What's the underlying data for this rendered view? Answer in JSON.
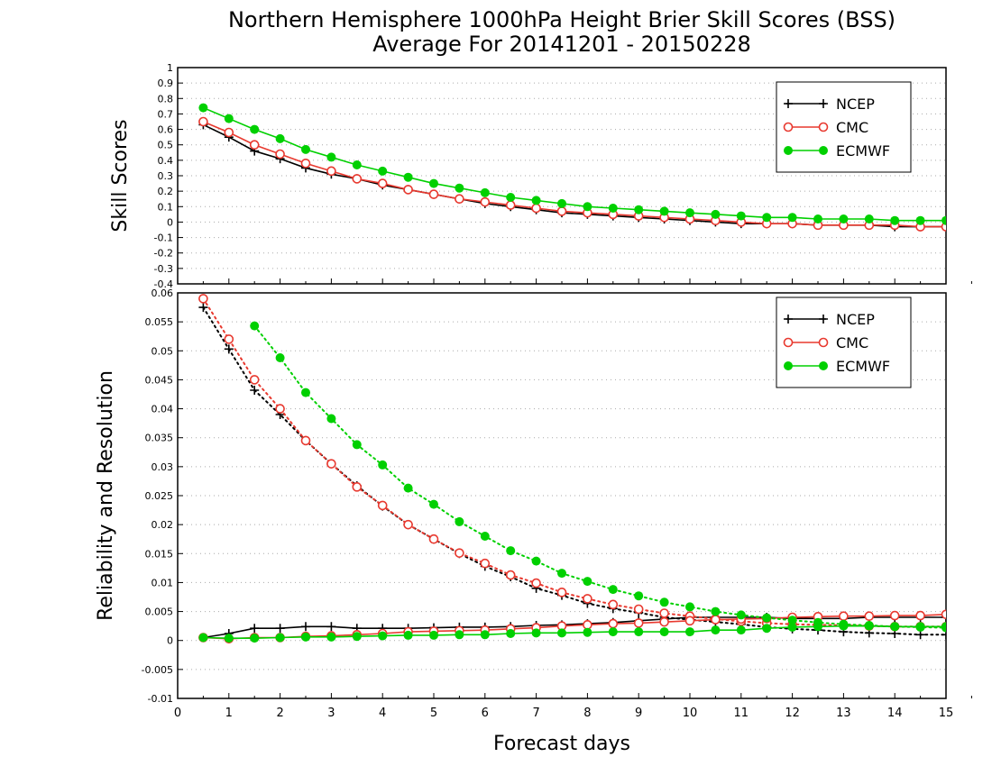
{
  "chart_data": [
    {
      "type": "line",
      "title": "Northern Hemisphere 1000hPa Height Brier Skill Scores (BSS)",
      "subtitle": "Average For 20141201 - 20150228",
      "ylabel": "Skill Scores",
      "xlabel": "",
      "xlim": [
        0,
        15
      ],
      "ylim": [
        -0.4,
        1
      ],
      "y_ticks": [
        "1",
        "0.9",
        "0.8",
        "0.7",
        "0.6",
        "0.5",
        "0.4",
        "0.3",
        "0.2",
        "0.1",
        "0",
        "-0.1",
        "-0.2",
        "-0.3",
        "-0.4"
      ],
      "grid": "horizontal dotted",
      "legend_position": "top-right",
      "x": [
        0.5,
        1,
        1.5,
        2,
        2.5,
        3,
        3.5,
        4,
        4.5,
        5,
        5.5,
        6,
        6.5,
        7,
        7.5,
        8,
        8.5,
        9,
        9.5,
        10,
        10.5,
        11,
        11.5,
        12,
        12.5,
        13,
        13.5,
        14,
        14.5,
        15
      ],
      "series": [
        {
          "name": "NCEP",
          "color": "#000000",
          "marker": "plus",
          "values": [
            0.63,
            0.55,
            0.46,
            0.41,
            0.35,
            0.31,
            0.28,
            0.24,
            0.21,
            0.18,
            0.15,
            0.12,
            0.1,
            0.08,
            0.06,
            0.05,
            0.04,
            0.03,
            0.02,
            0.01,
            0.0,
            -0.01,
            -0.01,
            -0.01,
            -0.02,
            -0.02,
            -0.02,
            -0.03,
            -0.03,
            -0.03
          ]
        },
        {
          "name": "CMC",
          "color": "#e8392f",
          "marker": "open-circle",
          "values": [
            0.65,
            0.58,
            0.5,
            0.44,
            0.38,
            0.33,
            0.28,
            0.25,
            0.21,
            0.18,
            0.15,
            0.13,
            0.11,
            0.09,
            0.07,
            0.06,
            0.05,
            0.04,
            0.03,
            0.02,
            0.01,
            0.0,
            -0.01,
            -0.01,
            -0.02,
            -0.02,
            -0.02,
            -0.02,
            -0.03,
            -0.03
          ]
        },
        {
          "name": "ECMWF",
          "color": "#00d000",
          "marker": "filled-circle",
          "values": [
            0.74,
            0.67,
            0.6,
            0.54,
            0.47,
            0.42,
            0.37,
            0.33,
            0.29,
            0.25,
            0.22,
            0.19,
            0.16,
            0.14,
            0.12,
            0.1,
            0.09,
            0.08,
            0.07,
            0.06,
            0.05,
            0.04,
            0.03,
            0.03,
            0.02,
            0.02,
            0.02,
            0.01,
            0.01,
            0.01
          ]
        }
      ]
    },
    {
      "type": "line",
      "ylabel": "Reliability and Resolution",
      "xlabel": "Forecast days",
      "xlim": [
        0,
        15
      ],
      "ylim": [
        -0.01,
        0.06
      ],
      "x_ticks": [
        "0",
        "1",
        "2",
        "3",
        "4",
        "5",
        "6",
        "7",
        "8",
        "9",
        "10",
        "11",
        "12",
        "13",
        "14",
        "15"
      ],
      "y_ticks": [
        "0.06",
        "0.055",
        "0.05",
        "0.045",
        "0.04",
        "0.035",
        "0.03",
        "0.025",
        "0.02",
        "0.015",
        "0.01",
        "0.005",
        "0",
        "-0.005",
        "-0.01"
      ],
      "grid": "horizontal dotted",
      "legend_position": "top-right",
      "x": [
        0.5,
        1,
        1.5,
        2,
        2.5,
        3,
        3.5,
        4,
        4.5,
        5,
        5.5,
        6,
        6.5,
        7,
        7.5,
        8,
        8.5,
        9,
        9.5,
        10,
        10.5,
        11,
        11.5,
        12,
        12.5,
        13,
        13.5,
        14,
        14.5,
        15
      ],
      "series": [
        {
          "name": "NCEP",
          "color": "#000000",
          "marker": "plus",
          "line": "dotted",
          "values": [
            0.0575,
            0.0503,
            0.0432,
            0.039,
            0.0345,
            0.0305,
            0.0267,
            0.0232,
            0.02,
            0.0175,
            0.015,
            0.0128,
            0.011,
            0.009,
            0.0078,
            0.0064,
            0.0055,
            0.0048,
            0.004,
            0.0036,
            0.0032,
            0.0028,
            0.0023,
            0.002,
            0.0018,
            0.0015,
            0.0013,
            0.0012,
            0.001,
            0.001
          ]
        },
        {
          "name": "NCEP",
          "color": "#000000",
          "marker": "plus",
          "line": "solid",
          "values": [
            0.0005,
            0.0012,
            0.0021,
            0.0021,
            0.0024,
            0.0024,
            0.0021,
            0.0021,
            0.0021,
            0.0022,
            0.0023,
            0.0023,
            0.0024,
            0.0026,
            0.0027,
            0.0029,
            0.0031,
            0.0034,
            0.0037,
            0.004,
            0.004,
            0.004,
            0.004,
            0.0038,
            0.0038,
            0.0038,
            0.004,
            0.004,
            0.004,
            0.004
          ]
        },
        {
          "name": "CMC",
          "color": "#e8392f",
          "marker": "open-circle",
          "line": "dotted",
          "values": [
            0.059,
            0.052,
            0.045,
            0.04,
            0.0345,
            0.0305,
            0.0265,
            0.0233,
            0.02,
            0.0175,
            0.0151,
            0.0133,
            0.0113,
            0.0099,
            0.0083,
            0.0072,
            0.0062,
            0.0054,
            0.0047,
            0.0042,
            0.0037,
            0.0033,
            0.003,
            0.0028,
            0.0027,
            0.0026,
            0.0025,
            0.0024,
            0.0024,
            0.0024
          ]
        },
        {
          "name": "CMC",
          "color": "#e8392f",
          "marker": "open-circle",
          "line": "solid",
          "values": [
            0.0005,
            0.0003,
            0.0005,
            0.0005,
            0.0007,
            0.0008,
            0.001,
            0.0012,
            0.0015,
            0.0016,
            0.0017,
            0.0018,
            0.002,
            0.0022,
            0.0025,
            0.0027,
            0.0029,
            0.003,
            0.0032,
            0.0034,
            0.0036,
            0.0037,
            0.0038,
            0.004,
            0.0041,
            0.0042,
            0.0042,
            0.0043,
            0.0043,
            0.0045
          ]
        },
        {
          "name": "ECMWF",
          "color": "#00d000",
          "marker": "filled-circle",
          "line": "dotted",
          "values": [
            null,
            null,
            0.0543,
            0.0488,
            0.0428,
            0.0383,
            0.0338,
            0.0303,
            0.0263,
            0.0235,
            0.0205,
            0.018,
            0.0155,
            0.0137,
            0.0116,
            0.0102,
            0.0088,
            0.0077,
            0.0066,
            0.0058,
            0.005,
            0.0044,
            0.0039,
            0.0035,
            0.0031,
            0.0028,
            0.0026,
            0.0024,
            0.0023,
            0.0022
          ]
        },
        {
          "name": "ECMWF",
          "color": "#00d000",
          "marker": "filled-circle",
          "line": "solid",
          "values": [
            0.0005,
            0.0004,
            0.0004,
            0.0005,
            0.0006,
            0.0006,
            0.0007,
            0.0008,
            0.0009,
            0.0009,
            0.001,
            0.001,
            0.0012,
            0.0013,
            0.0013,
            0.0014,
            0.0015,
            0.0015,
            0.0015,
            0.0015,
            0.0018,
            0.0018,
            0.0021,
            0.0023,
            0.0024,
            0.0025,
            0.0025,
            0.0024,
            0.0024,
            0.0024
          ]
        }
      ]
    }
  ]
}
